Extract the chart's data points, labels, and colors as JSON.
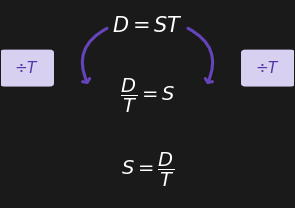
{
  "bg_color": "#1a1a1a",
  "arrow_color": "#6644bb",
  "box_bg_color": "#d8d0f0",
  "box_text_color": "#5533aa",
  "formula_color": "#ffffff",
  "title_formula": "$D = ST$",
  "mid_formula": "$\\dfrac{D}{T} = S$",
  "bot_formula": "$S = \\dfrac{D}{T}$",
  "box_left_text": "$\\div T$",
  "box_right_text": "$\\div T$",
  "fig_width": 2.95,
  "fig_height": 2.08,
  "dpi": 100
}
